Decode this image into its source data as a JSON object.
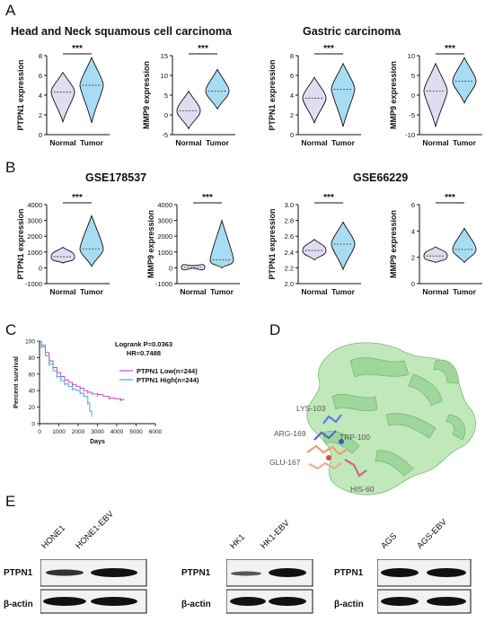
{
  "panels": {
    "a": {
      "letter": "A",
      "datasets": [
        {
          "title": "Head and Neck squamous cell carcinoma"
        },
        {
          "title": "Gastric carcinoma"
        }
      ]
    },
    "b": {
      "letter": "B",
      "datasets": [
        {
          "title": "GSE178537"
        },
        {
          "title": "GSE66229"
        }
      ]
    },
    "c": {
      "letter": "C"
    },
    "d": {
      "letter": "D",
      "residues": [
        "LYS-103",
        "ARG-169",
        "TRP-100",
        "GLU-167",
        "HIS-60"
      ]
    },
    "e": {
      "letter": "E",
      "blots": [
        {
          "lanes": [
            "HONE1",
            "HONE1-EBV"
          ],
          "rows": [
            "PTPN1",
            "β-actin"
          ]
        },
        {
          "lanes": [
            "HK1",
            "HK1-EBV"
          ],
          "rows": [
            "PTPN1",
            "β-actin"
          ]
        },
        {
          "lanes": [
            "AGS",
            "AGS-EBV"
          ],
          "rows": [
            "PTPN1",
            "β-actin"
          ]
        }
      ]
    }
  },
  "chart_data": [
    {
      "type": "violin",
      "panel": "A",
      "dataset": "Head and Neck squamous cell carcinoma",
      "ylabel": "PTPN1 expression",
      "categories": [
        "Normal",
        "Tumor"
      ],
      "ylim": [
        0,
        8
      ],
      "yticks": [
        0,
        2,
        4,
        6,
        8
      ],
      "medians": [
        4.3,
        5.0
      ],
      "ranges": [
        [
          1.3,
          6.3
        ],
        [
          1.2,
          7.8
        ]
      ],
      "significance": "***"
    },
    {
      "type": "violin",
      "panel": "A",
      "dataset": "Head and Neck squamous cell carcinoma",
      "ylabel": "MMP9 expression",
      "categories": [
        "Normal",
        "Tumor"
      ],
      "ylim": [
        -5,
        15
      ],
      "yticks": [
        -5,
        0,
        5,
        10,
        15
      ],
      "medians": [
        1.0,
        6.0
      ],
      "ranges": [
        [
          -3.5,
          6.0
        ],
        [
          1.5,
          11.5
        ]
      ],
      "significance": "***"
    },
    {
      "type": "violin",
      "panel": "A",
      "dataset": "Gastric carcinoma",
      "ylabel": "PTPN1 expression",
      "categories": [
        "Normal",
        "Tumor"
      ],
      "ylim": [
        0,
        8
      ],
      "yticks": [
        0,
        2,
        4,
        6,
        8
      ],
      "medians": [
        3.7,
        4.6
      ],
      "ranges": [
        [
          1.2,
          5.8
        ],
        [
          0.8,
          7.2
        ]
      ],
      "significance": "***"
    },
    {
      "type": "violin",
      "panel": "A",
      "dataset": "Gastric carcinoma",
      "ylabel": "MMP9 expression",
      "categories": [
        "Normal",
        "Tumor"
      ],
      "ylim": [
        -10,
        10
      ],
      "yticks": [
        -10,
        -5,
        0,
        5,
        10
      ],
      "medians": [
        1.0,
        3.5
      ],
      "ranges": [
        [
          -8.0,
          8.0
        ],
        [
          -2.0,
          9.5
        ]
      ],
      "significance": "***"
    },
    {
      "type": "violin",
      "panel": "B",
      "dataset": "GSE178537",
      "ylabel": "PTPN1 expression",
      "categories": [
        "Normal",
        "Tumor"
      ],
      "ylim": [
        -1000,
        4000
      ],
      "yticks": [
        -1000,
        0,
        1000,
        2000,
        3000,
        4000
      ],
      "medians": [
        700,
        1200
      ],
      "ranges": [
        [
          300,
          1300
        ],
        [
          100,
          3300
        ]
      ],
      "significance": "***"
    },
    {
      "type": "violin",
      "panel": "B",
      "dataset": "GSE178537",
      "ylabel": "MMP9 expression",
      "categories": [
        "Normal",
        "Tumor"
      ],
      "ylim": [
        -1000,
        4000
      ],
      "yticks": [
        -1000,
        0,
        1000,
        2000,
        3000,
        4000
      ],
      "medians": [
        30,
        500
      ],
      "ranges": [
        [
          -30,
          150
        ],
        [
          0,
          3000
        ]
      ],
      "significance": "***"
    },
    {
      "type": "violin",
      "panel": "B",
      "dataset": "GSE66229",
      "ylabel": "PTPN1 expression",
      "categories": [
        "Normal",
        "Tumor"
      ],
      "ylim": [
        2.0,
        3.0
      ],
      "yticks": [
        "2.0",
        "2.2",
        "2.4",
        "2.6",
        "2.8",
        "3.0"
      ],
      "medians": [
        2.42,
        2.5
      ],
      "ranges": [
        [
          2.3,
          2.56
        ],
        [
          2.18,
          2.78
        ]
      ],
      "significance": "***"
    },
    {
      "type": "violin",
      "panel": "B",
      "dataset": "GSE66229",
      "ylabel": "MMP9 expression",
      "categories": [
        "Normal",
        "Tumor"
      ],
      "ylim": [
        0,
        6
      ],
      "yticks": [
        0,
        2,
        4,
        6
      ],
      "medians": [
        2.1,
        2.6
      ],
      "ranges": [
        [
          1.6,
          2.8
        ],
        [
          1.6,
          4.2
        ]
      ],
      "significance": "***"
    },
    {
      "type": "line",
      "panel": "C",
      "title": "",
      "xlabel": "Days",
      "ylabel": "Percent survival",
      "xlim": [
        0,
        6000
      ],
      "ylim": [
        0,
        100
      ],
      "xticks": [
        0,
        1000,
        2000,
        3000,
        4000,
        5000,
        6000
      ],
      "yticks": [
        0,
        20,
        40,
        60,
        80,
        100
      ],
      "annotation": [
        "Logrank P=0.0363",
        "HR=0.7488"
      ],
      "series": [
        {
          "name": "PTPN1 Low(n=244)",
          "color": "#cc44cc",
          "x": [
            0,
            100,
            300,
            500,
            700,
            900,
            1100,
            1300,
            1500,
            1700,
            1900,
            2100,
            2300,
            2500,
            2700,
            3000,
            3300,
            3600,
            3900,
            4200,
            4400
          ],
          "y": [
            100,
            95,
            86,
            76,
            68,
            62,
            57,
            53,
            50,
            47,
            45,
            43,
            40,
            38,
            36,
            35,
            33,
            31,
            30,
            29,
            29
          ]
        },
        {
          "name": "PTPN1 High(n=244)",
          "color": "#44aadd",
          "x": [
            0,
            100,
            300,
            500,
            700,
            900,
            1100,
            1300,
            1500,
            1700,
            1900,
            2100,
            2300,
            2500,
            2600,
            2700
          ],
          "y": [
            100,
            93,
            82,
            72,
            64,
            57,
            52,
            48,
            45,
            42,
            40,
            37,
            33,
            25,
            15,
            10
          ]
        }
      ]
    }
  ]
}
